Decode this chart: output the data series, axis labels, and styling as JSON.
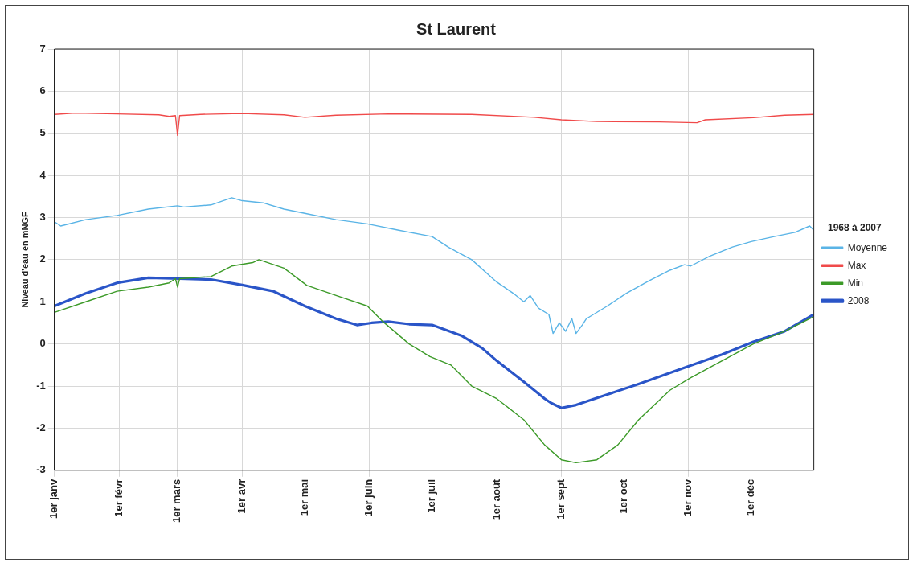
{
  "chart_data": {
    "type": "line",
    "title": "St Laurent",
    "ylabel": "Niveau d'eau en mNGF",
    "legend_title": "1968 à 2007",
    "legend": "right",
    "grid": true,
    "marker": "none",
    "line_style": "solid",
    "xlim": [
      "--01-01",
      "--12-31"
    ],
    "ylim": [
      -3,
      7
    ],
    "yticks": [
      -3,
      -2,
      -1,
      0,
      1,
      2,
      3,
      4,
      5,
      6,
      7
    ],
    "xticks": [
      {
        "value": "--01-01",
        "label": "1er janv"
      },
      {
        "value": "--02-01",
        "label": "1er févr"
      },
      {
        "value": "--03-01",
        "label": "1er mars"
      },
      {
        "value": "--04-01",
        "label": "1er avr"
      },
      {
        "value": "--05-01",
        "label": "1er mai"
      },
      {
        "value": "--06-01",
        "label": "1er juin"
      },
      {
        "value": "--07-01",
        "label": "1er juil"
      },
      {
        "value": "--08-01",
        "label": "1er août"
      },
      {
        "value": "--09-01",
        "label": "1er sept"
      },
      {
        "value": "--10-01",
        "label": "1er oct"
      },
      {
        "value": "--11-01",
        "label": "1er nov"
      },
      {
        "value": "--12-01",
        "label": "1er déc"
      }
    ],
    "series": [
      {
        "name": "Moyenne",
        "color": "#5ab4e6",
        "x": [
          "--01-01",
          "--01-04",
          "--01-16",
          "--01-31",
          "--02-15",
          "--03-01",
          "--03-04",
          "--03-17",
          "--03-27",
          "--04-01",
          "--04-11",
          "--04-21",
          "--05-01",
          "--05-16",
          "--05-31",
          "--06-15",
          "--07-01",
          "--07-09",
          "--07-20",
          "--08-01",
          "--08-09",
          "--08-14",
          "--08-17",
          "--08-21",
          "--08-26",
          "--08-28",
          "--08-31",
          "--09-03",
          "--09-06",
          "--09-08",
          "--09-11",
          "--09-13",
          "--09-23",
          "--10-02",
          "--10-13",
          "--10-23",
          "--10-30",
          "--11-02",
          "--11-11",
          "--11-22",
          "--12-01",
          "--12-12",
          "--12-22",
          "--12-29",
          "--12-31"
        ],
        "values": [
          2.9,
          2.8,
          2.95,
          3.05,
          3.2,
          3.28,
          3.25,
          3.3,
          3.47,
          3.4,
          3.35,
          3.2,
          3.1,
          2.95,
          2.85,
          2.7,
          2.55,
          2.29,
          2.0,
          1.47,
          1.2,
          1.0,
          1.15,
          0.85,
          0.7,
          0.25,
          0.5,
          0.3,
          0.6,
          0.25,
          0.45,
          0.6,
          0.9,
          1.2,
          1.5,
          1.75,
          1.88,
          1.85,
          2.08,
          2.3,
          2.43,
          2.55,
          2.65,
          2.8,
          2.7
        ]
      },
      {
        "name": "Max",
        "color": "#f04a4a",
        "x": [
          "--01-01",
          "--01-11",
          "--01-31",
          "--02-20",
          "--02-25",
          "--02-28",
          "--03-01",
          "--03-02",
          "--03-12",
          "--04-01",
          "--04-21",
          "--05-01",
          "--05-16",
          "--06-10",
          "--07-20",
          "--08-19",
          "--09-01",
          "--09-18",
          "--10-18",
          "--11-05",
          "--11-09",
          "--12-02",
          "--12-17",
          "--12-31"
        ],
        "values": [
          5.45,
          5.48,
          5.46,
          5.44,
          5.4,
          5.42,
          4.95,
          5.42,
          5.45,
          5.47,
          5.44,
          5.38,
          5.43,
          5.46,
          5.45,
          5.38,
          5.32,
          5.28,
          5.27,
          5.25,
          5.32,
          5.37,
          5.43,
          5.45
        ]
      },
      {
        "name": "Min",
        "color": "#3c9a28",
        "x": [
          "--01-01",
          "--01-16",
          "--01-31",
          "--02-15",
          "--02-25",
          "--02-28",
          "--03-01",
          "--03-02",
          "--03-17",
          "--03-27",
          "--04-06",
          "--04-09",
          "--04-21",
          "--05-02",
          "--05-16",
          "--05-31",
          "--06-07",
          "--06-20",
          "--06-30",
          "--07-10",
          "--07-20",
          "--08-01",
          "--08-14",
          "--08-24",
          "--09-01",
          "--09-08",
          "--09-18",
          "--09-28",
          "--10-08",
          "--10-23",
          "--11-02",
          "--11-17",
          "--12-02",
          "--12-17",
          "--12-31"
        ],
        "values": [
          0.75,
          1.0,
          1.25,
          1.35,
          1.45,
          1.55,
          1.35,
          1.55,
          1.6,
          1.85,
          1.93,
          2.0,
          1.8,
          1.39,
          1.15,
          0.9,
          0.55,
          0.0,
          -0.3,
          -0.5,
          -1.0,
          -1.3,
          -1.8,
          -2.4,
          -2.75,
          -2.82,
          -2.75,
          -2.4,
          -1.8,
          -1.1,
          -0.8,
          -0.4,
          0.0,
          0.3,
          0.65
        ]
      },
      {
        "name": "2008",
        "color": "#2a55c8",
        "x": [
          "--01-01",
          "--01-16",
          "--01-31",
          "--02-15",
          "--03-02",
          "--03-17",
          "--04-01",
          "--04-16",
          "--05-01",
          "--05-16",
          "--05-26",
          "--06-02",
          "--06-10",
          "--06-20",
          "--07-01",
          "--07-15",
          "--07-25",
          "--08-01",
          "--08-14",
          "--08-24",
          "--08-27",
          "--09-01",
          "--09-08",
          "--09-23",
          "--10-08",
          "--10-28",
          "--11-17",
          "--12-02",
          "--12-17",
          "--12-31"
        ],
        "values": [
          0.9,
          1.2,
          1.45,
          1.57,
          1.55,
          1.53,
          1.4,
          1.25,
          0.9,
          0.6,
          0.45,
          0.5,
          0.53,
          0.47,
          0.45,
          0.2,
          -0.1,
          -0.4,
          -0.9,
          -1.3,
          -1.4,
          -1.52,
          -1.45,
          -1.2,
          -0.95,
          -0.6,
          -0.25,
          0.05,
          0.3,
          0.7
        ]
      }
    ]
  }
}
